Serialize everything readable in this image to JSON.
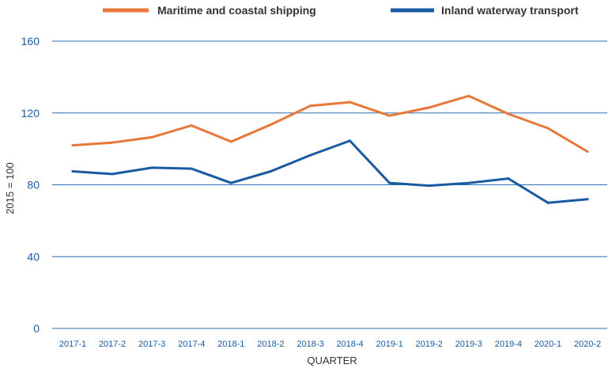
{
  "chart_data": {
    "type": "line",
    "title": "",
    "xlabel": "QUARTER",
    "ylabel": "2015 = 100",
    "ylim": [
      0,
      160
    ],
    "yticks": [
      0,
      40,
      80,
      120,
      160
    ],
    "grid": true,
    "legend_position": "top",
    "categories": [
      "2017-1",
      "2017-2",
      "2017-3",
      "2017-4",
      "2018-1",
      "2018-2",
      "2018-3",
      "2018-4",
      "2019-1",
      "2019-2",
      "2019-3",
      "2019-4",
      "2020-1",
      "2020-2"
    ],
    "series": [
      {
        "name": "Maritime and coastal shipping",
        "color": "#e8773a",
        "values": [
          102,
          103.5,
          106.5,
          113,
          104,
          113.5,
          124,
          126,
          118.5,
          123,
          129.5,
          119.5,
          111.5,
          98.5
        ]
      },
      {
        "name": "Inland waterway transport",
        "color": "#1a5aa0",
        "values": [
          87.5,
          86,
          89.5,
          89,
          81,
          87.5,
          96.5,
          104.5,
          81,
          79.5,
          81,
          83.5,
          70,
          72
        ]
      }
    ]
  }
}
